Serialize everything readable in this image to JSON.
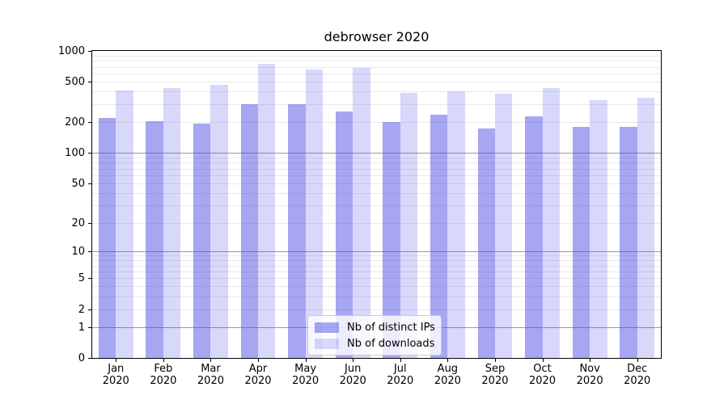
{
  "chart_data": {
    "type": "bar",
    "title": "debrowser 2020",
    "categories": [
      "Jan 2020",
      "Feb 2020",
      "Mar 2020",
      "Apr 2020",
      "May 2020",
      "Jun 2020",
      "Jul 2020",
      "Aug 2020",
      "Sep 2020",
      "Oct 2020",
      "Nov 2020",
      "Dec 2020"
    ],
    "series": [
      {
        "name": "Nb of distinct IPs",
        "color": "rgba(70,70,230,0.48)",
        "values": [
          220,
          205,
          195,
          300,
          300,
          255,
          200,
          235,
          175,
          228,
          180,
          180
        ]
      },
      {
        "name": "Nb of downloads",
        "color": "rgba(70,70,230,0.21)",
        "values": [
          410,
          435,
          465,
          750,
          655,
          685,
          385,
          400,
          380,
          430,
          330,
          350
        ]
      }
    ],
    "xlabel": "",
    "ylabel": "",
    "yscale": "symlog-log1p",
    "ylim": [
      0,
      1000
    ],
    "legend_position": "lower center",
    "grid": "horizontal major+minor",
    "y_ticks": [
      {
        "value": 1000,
        "label": "1000"
      },
      {
        "value": 500,
        "label": "500"
      },
      {
        "value": 200,
        "label": "200"
      },
      {
        "value": 100,
        "label": "100"
      },
      {
        "value": 50,
        "label": "50"
      },
      {
        "value": 20,
        "label": "20"
      },
      {
        "value": 10,
        "label": "10"
      },
      {
        "value": 5,
        "label": "5"
      },
      {
        "value": 2,
        "label": "2"
      },
      {
        "value": 1,
        "label": "1"
      },
      {
        "value": 0,
        "label": "0"
      }
    ],
    "y_major_gridlines": [
      1,
      10,
      100
    ],
    "y_minor_gridlines": [
      2,
      3,
      4,
      5,
      6,
      7,
      8,
      9,
      20,
      30,
      40,
      50,
      60,
      70,
      80,
      90,
      200,
      300,
      400,
      500,
      600,
      700,
      800,
      900
    ]
  },
  "colors": {
    "grid_minor": "#e9e9e9",
    "grid_major": "#9a9a9a",
    "spine": "#000000",
    "background": "#ffffff"
  }
}
